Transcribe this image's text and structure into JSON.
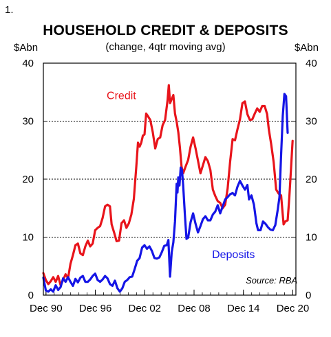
{
  "figure": {
    "number": "1.",
    "title": "HOUSEHOLD CREDIT & DEPOSITS",
    "subtitle": "(change, 4qtr moving avg)",
    "y_unit_left": "$Abn",
    "y_unit_right": "$Abn",
    "source": "Source: RBA"
  },
  "colors": {
    "credit": "#e8141b",
    "deposits": "#1515e6",
    "grid": "#000000"
  },
  "chart_data": {
    "type": "line",
    "title": "HOUSEHOLD CREDIT & DEPOSITS",
    "subtitle": "(change, 4qtr moving avg)",
    "ylabel": "$Abn",
    "xlim": [
      1990.6,
      2021.3
    ],
    "ylim": [
      0,
      40
    ],
    "y_ticks": [
      0,
      10,
      20,
      30,
      40
    ],
    "x_ticks": [
      {
        "x": 1990.92,
        "label": "Dec 90"
      },
      {
        "x": 1996.92,
        "label": "Dec 96"
      },
      {
        "x": 2002.92,
        "label": "Dec 02"
      },
      {
        "x": 2008.92,
        "label": "Dec 08"
      },
      {
        "x": 2014.92,
        "label": "Dec 14"
      },
      {
        "x": 2020.92,
        "label": "Dec 20"
      }
    ],
    "grid": "horizontal dotted",
    "series": [
      {
        "name": "Credit",
        "points": [
          [
            1990.6,
            3.8
          ],
          [
            1990.9,
            2.6
          ],
          [
            1991.2,
            1.9
          ],
          [
            1991.5,
            2.4
          ],
          [
            1991.8,
            3.1
          ],
          [
            1992.1,
            2.3
          ],
          [
            1992.4,
            3.3
          ],
          [
            1992.7,
            1.7
          ],
          [
            1993.0,
            2.6
          ],
          [
            1993.3,
            3.6
          ],
          [
            1993.6,
            2.9
          ],
          [
            1993.9,
            5.4
          ],
          [
            1994.2,
            6.9
          ],
          [
            1994.5,
            8.6
          ],
          [
            1994.8,
            8.9
          ],
          [
            1995.1,
            7.2
          ],
          [
            1995.4,
            6.9
          ],
          [
            1995.7,
            8.4
          ],
          [
            1996.0,
            9.4
          ],
          [
            1996.3,
            8.4
          ],
          [
            1996.6,
            8.9
          ],
          [
            1996.9,
            11.2
          ],
          [
            1997.2,
            11.6
          ],
          [
            1997.5,
            11.9
          ],
          [
            1997.8,
            13.3
          ],
          [
            1998.1,
            15.3
          ],
          [
            1998.4,
            15.6
          ],
          [
            1998.7,
            15.3
          ],
          [
            1998.9,
            12.2
          ],
          [
            1999.2,
            10.8
          ],
          [
            1999.5,
            9.3
          ],
          [
            1999.8,
            9.4
          ],
          [
            2000.1,
            12.4
          ],
          [
            2000.4,
            12.9
          ],
          [
            2000.7,
            11.6
          ],
          [
            2001.0,
            12.4
          ],
          [
            2001.3,
            13.9
          ],
          [
            2001.6,
            16.6
          ],
          [
            2001.9,
            22.2
          ],
          [
            2002.1,
            26.3
          ],
          [
            2002.3,
            25.6
          ],
          [
            2002.5,
            26.3
          ],
          [
            2002.7,
            27.5
          ],
          [
            2002.9,
            27.7
          ],
          [
            2003.1,
            31.3
          ],
          [
            2003.3,
            30.9
          ],
          [
            2003.6,
            30.2
          ],
          [
            2003.9,
            28.1
          ],
          [
            2004.2,
            25.3
          ],
          [
            2004.5,
            26.9
          ],
          [
            2004.8,
            27.2
          ],
          [
            2005.1,
            29.3
          ],
          [
            2005.4,
            30.2
          ],
          [
            2005.7,
            33.6
          ],
          [
            2005.85,
            36.2
          ],
          [
            2006.0,
            33.1
          ],
          [
            2006.2,
            33.8
          ],
          [
            2006.4,
            34.5
          ],
          [
            2006.6,
            31.3
          ],
          [
            2006.8,
            29.9
          ],
          [
            2007.0,
            28.1
          ],
          [
            2007.2,
            25.5
          ],
          [
            2007.4,
            22.2
          ],
          [
            2007.6,
            21.0
          ],
          [
            2007.9,
            22.2
          ],
          [
            2008.2,
            23.3
          ],
          [
            2008.5,
            25.6
          ],
          [
            2008.8,
            27.2
          ],
          [
            2009.1,
            25.3
          ],
          [
            2009.4,
            23.2
          ],
          [
            2009.7,
            21.0
          ],
          [
            2010.0,
            22.4
          ],
          [
            2010.3,
            23.8
          ],
          [
            2010.6,
            23.1
          ],
          [
            2010.9,
            21.6
          ],
          [
            2011.2,
            18.2
          ],
          [
            2011.5,
            17.1
          ],
          [
            2011.8,
            16.2
          ],
          [
            2012.1,
            15.9
          ],
          [
            2012.4,
            15.0
          ],
          [
            2012.7,
            15.6
          ],
          [
            2013.0,
            18.4
          ],
          [
            2013.3,
            23.0
          ],
          [
            2013.6,
            26.9
          ],
          [
            2013.9,
            26.7
          ],
          [
            2014.2,
            28.6
          ],
          [
            2014.5,
            30.3
          ],
          [
            2014.8,
            33.1
          ],
          [
            2015.1,
            33.4
          ],
          [
            2015.4,
            31.2
          ],
          [
            2015.7,
            30.2
          ],
          [
            2016.0,
            30.3
          ],
          [
            2016.3,
            31.3
          ],
          [
            2016.6,
            32.2
          ],
          [
            2016.9,
            31.6
          ],
          [
            2017.2,
            32.6
          ],
          [
            2017.5,
            32.6
          ],
          [
            2017.8,
            31.2
          ],
          [
            2018.0,
            28.6
          ],
          [
            2018.3,
            26.0
          ],
          [
            2018.6,
            22.9
          ],
          [
            2018.9,
            18.2
          ],
          [
            2019.2,
            17.5
          ],
          [
            2019.5,
            17.2
          ],
          [
            2019.8,
            12.2
          ],
          [
            2020.0,
            12.7
          ],
          [
            2020.3,
            12.9
          ],
          [
            2020.5,
            16.8
          ],
          [
            2020.7,
            21.6
          ],
          [
            2020.9,
            26.6
          ]
        ]
      },
      {
        "name": "Deposits",
        "points": [
          [
            1990.6,
            3.0
          ],
          [
            1990.9,
            0.8
          ],
          [
            1991.2,
            0.6
          ],
          [
            1991.5,
            1.0
          ],
          [
            1991.8,
            0.6
          ],
          [
            1992.1,
            1.7
          ],
          [
            1992.4,
            0.9
          ],
          [
            1992.7,
            1.4
          ],
          [
            1993.0,
            2.9
          ],
          [
            1993.3,
            2.3
          ],
          [
            1993.6,
            3.1
          ],
          [
            1993.9,
            2.3
          ],
          [
            1994.2,
            1.6
          ],
          [
            1994.5,
            2.8
          ],
          [
            1994.8,
            2.2
          ],
          [
            1995.1,
            3.0
          ],
          [
            1995.4,
            3.3
          ],
          [
            1995.7,
            2.3
          ],
          [
            1996.0,
            2.3
          ],
          [
            1996.3,
            2.7
          ],
          [
            1996.6,
            3.3
          ],
          [
            1996.9,
            3.7
          ],
          [
            1997.2,
            2.6
          ],
          [
            1997.5,
            2.3
          ],
          [
            1997.8,
            2.7
          ],
          [
            1998.1,
            3.3
          ],
          [
            1998.4,
            2.9
          ],
          [
            1998.7,
            1.9
          ],
          [
            1999.0,
            1.6
          ],
          [
            1999.3,
            2.5
          ],
          [
            1999.6,
            1.2
          ],
          [
            1999.9,
            0.6
          ],
          [
            2000.2,
            1.2
          ],
          [
            2000.5,
            2.3
          ],
          [
            2000.8,
            2.6
          ],
          [
            2001.1,
            3.1
          ],
          [
            2001.4,
            3.2
          ],
          [
            2001.7,
            4.5
          ],
          [
            2002.0,
            5.9
          ],
          [
            2002.3,
            6.4
          ],
          [
            2002.6,
            8.2
          ],
          [
            2002.9,
            8.6
          ],
          [
            2003.2,
            8.0
          ],
          [
            2003.5,
            8.4
          ],
          [
            2003.8,
            7.6
          ],
          [
            2004.1,
            6.4
          ],
          [
            2004.4,
            6.3
          ],
          [
            2004.7,
            6.5
          ],
          [
            2005.0,
            7.4
          ],
          [
            2005.3,
            8.5
          ],
          [
            2005.6,
            8.6
          ],
          [
            2005.8,
            9.5
          ],
          [
            2006.0,
            3.2
          ],
          [
            2006.2,
            7.4
          ],
          [
            2006.4,
            9.1
          ],
          [
            2006.6,
            12.7
          ],
          [
            2006.8,
            19.2
          ],
          [
            2006.9,
            17.7
          ],
          [
            2007.0,
            20.3
          ],
          [
            2007.15,
            18.9
          ],
          [
            2007.3,
            22.0
          ],
          [
            2007.45,
            21.6
          ],
          [
            2007.6,
            18.9
          ],
          [
            2007.8,
            14.0
          ],
          [
            2008.0,
            9.7
          ],
          [
            2008.2,
            9.9
          ],
          [
            2008.5,
            12.6
          ],
          [
            2008.8,
            14.1
          ],
          [
            2009.1,
            12.3
          ],
          [
            2009.4,
            10.8
          ],
          [
            2009.7,
            11.9
          ],
          [
            2010.0,
            13.1
          ],
          [
            2010.3,
            13.6
          ],
          [
            2010.6,
            12.9
          ],
          [
            2010.9,
            12.9
          ],
          [
            2011.2,
            13.9
          ],
          [
            2011.5,
            14.4
          ],
          [
            2011.8,
            15.5
          ],
          [
            2012.1,
            14.1
          ],
          [
            2012.4,
            15.3
          ],
          [
            2012.7,
            16.5
          ],
          [
            2013.0,
            16.9
          ],
          [
            2013.3,
            17.4
          ],
          [
            2013.6,
            17.6
          ],
          [
            2013.9,
            17.2
          ],
          [
            2014.2,
            18.7
          ],
          [
            2014.5,
            19.7
          ],
          [
            2014.8,
            18.9
          ],
          [
            2015.1,
            18.2
          ],
          [
            2015.4,
            19.0
          ],
          [
            2015.6,
            16.5
          ],
          [
            2015.9,
            17.2
          ],
          [
            2016.2,
            15.6
          ],
          [
            2016.5,
            12.4
          ],
          [
            2016.7,
            11.2
          ],
          [
            2017.0,
            11.2
          ],
          [
            2017.3,
            12.7
          ],
          [
            2017.6,
            12.3
          ],
          [
            2017.9,
            11.7
          ],
          [
            2018.2,
            11.3
          ],
          [
            2018.5,
            11.2
          ],
          [
            2018.8,
            12.1
          ],
          [
            2019.1,
            14.8
          ],
          [
            2019.3,
            16.9
          ],
          [
            2019.5,
            24.2
          ],
          [
            2019.7,
            30.9
          ],
          [
            2019.9,
            34.7
          ],
          [
            2020.1,
            34.3
          ],
          [
            2020.3,
            28.0
          ]
        ]
      }
    ],
    "annotations": [
      {
        "text": "Credit",
        "x": 1998.3,
        "y": 33.8,
        "series": "Credit"
      },
      {
        "text": "Deposits",
        "x": 2011.1,
        "y": 6.4,
        "series": "Deposits"
      },
      {
        "text": "Source: RBA",
        "x": 2015.2,
        "y": 2.0,
        "series": ""
      }
    ]
  }
}
